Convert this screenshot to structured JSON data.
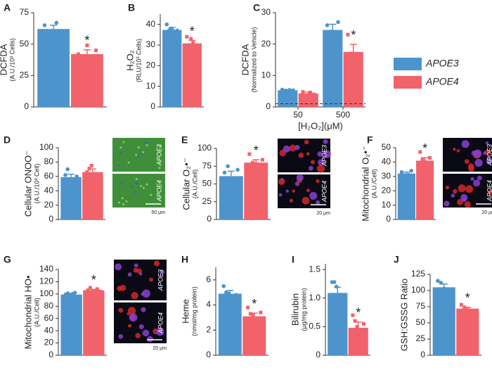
{
  "legend": {
    "series": [
      {
        "name": "APOE3",
        "color": "#4d94cc"
      },
      {
        "name": "APOE4",
        "color": "#f2626a"
      }
    ]
  },
  "chart_data": [
    {
      "type": "bar",
      "panel": "A",
      "ylabel": "DCFDA",
      "ylabel_sub": "(A.U./10³ Cells)",
      "ylim": [
        0,
        75
      ],
      "yticks": [
        0,
        25,
        50,
        75
      ],
      "series": [
        {
          "values": [
            62
          ],
          "errors": [
            3
          ],
          "points": [
            [
              65,
              60,
              67,
              56
            ]
          ]
        },
        {
          "values": [
            42
          ],
          "errors": [
            3.5
          ],
          "points": [
            [
              42,
              40,
              49,
              38,
              45
            ]
          ],
          "annotations": [
            "*"
          ]
        }
      ]
    },
    {
      "type": "bar",
      "panel": "B",
      "ylabel": "H₂O₂",
      "ylabel_sub": "(RLU/10³ Cells)",
      "ylim": [
        0,
        45
      ],
      "yticks": [
        0,
        10,
        20,
        30,
        40
      ],
      "series": [
        {
          "values": [
            37.3
          ],
          "errors": [
            1.2
          ],
          "points": [
            [
              40,
              37,
              38,
              37,
              34,
              37
            ]
          ]
        },
        {
          "values": [
            30.8
          ],
          "errors": [
            1.4
          ],
          "points": [
            [
              34,
              29,
              33,
              31,
              29,
              27
            ]
          ],
          "annotations": [
            "*"
          ]
        }
      ]
    },
    {
      "type": "bar",
      "panel": "C",
      "ylabel": "DCFDA",
      "ylabel_sub": "(Normalized to Vehicle)",
      "xlabel": "[H₂O₂](μM)",
      "categories": [
        "50",
        "500"
      ],
      "ylim": [
        0,
        30
      ],
      "yticks": [
        0,
        10,
        20,
        30
      ],
      "reference_line": 1,
      "series": [
        {
          "values": [
            5.3,
            24.5
          ],
          "errors": [
            0.2,
            1.8
          ],
          "points": [
            [
              5.5,
              5.2,
              5.4,
              5.3
            ],
            [
              26,
              24,
              21,
              27
            ]
          ]
        },
        {
          "values": [
            4.3,
            17.5
          ],
          "errors": [
            0.4,
            2.4
          ],
          "points": [
            [
              4.8,
              3.6,
              4.6,
              4.0
            ],
            [
              23,
              17,
              15,
              15
            ]
          ],
          "annotations": [
            null,
            "*"
          ]
        }
      ]
    },
    {
      "type": "bar",
      "panel": "D",
      "ylabel": "Cellular ONOO⁻",
      "ylabel_sub": "(A.U./10³ Cell)",
      "ylim": [
        0,
        100
      ],
      "yticks": [
        0,
        20,
        40,
        60,
        80,
        100
      ],
      "images": {
        "labels": [
          "APOE3",
          "APOE4"
        ],
        "scale_label": "50 μm",
        "style": "green"
      },
      "series": [
        {
          "values": [
            59
          ],
          "errors": [
            4
          ],
          "points": [
            [
              62,
              70,
              55,
              45,
              46,
              60
            ]
          ]
        },
        {
          "values": [
            66
          ],
          "errors": [
            4.5
          ],
          "points": [
            [
              66,
              71,
              75,
              58,
              60,
              60
            ]
          ]
        }
      ]
    },
    {
      "type": "bar",
      "panel": "E",
      "ylabel": "Cellular O₂•⁻",
      "ylabel_sub": "(A.U./Cell)",
      "ylim": [
        0,
        100
      ],
      "yticks": [
        0,
        25,
        50,
        75,
        100
      ],
      "images": {
        "labels": [
          "APOE3",
          "APOE4"
        ],
        "scale_label": "20 μm",
        "style": "dark"
      },
      "series": [
        {
          "values": [
            61
          ],
          "errors": [
            7
          ],
          "points": [
            [
              66,
              75,
              50,
              40,
              70
            ]
          ]
        },
        {
          "values": [
            80
          ],
          "errors": [
            4
          ],
          "points": [
            [
              92,
              80,
              78,
              72,
              84
            ]
          ],
          "annotations": [
            "*"
          ]
        }
      ]
    },
    {
      "type": "bar",
      "panel": "F",
      "ylabel": "Mitochondrial O₂•⁻",
      "ylabel_sub": "(A.U./Cell)",
      "ylim": [
        0,
        50
      ],
      "yticks": [
        0,
        10,
        20,
        30,
        40,
        50
      ],
      "images": {
        "labels": [
          "APOE3",
          "APOE4"
        ],
        "scale_label": "20 μm",
        "style": "dark"
      },
      "series": [
        {
          "values": [
            32
          ],
          "errors": [
            1
          ],
          "points": [
            [
              33,
              30,
              31,
              31,
              34
            ]
          ]
        },
        {
          "values": [
            41
          ],
          "errors": [
            2
          ],
          "points": [
            [
              47,
              42,
              40,
              35,
              43
            ]
          ],
          "annotations": [
            "*"
          ]
        }
      ]
    },
    {
      "type": "bar",
      "panel": "G",
      "ylabel": "Mitochondrial HO•",
      "ylabel_sub": "(A.U./Cell)",
      "ylim": [
        0,
        140
      ],
      "yticks": [
        0,
        20,
        40,
        60,
        80,
        100,
        120,
        140
      ],
      "images": {
        "labels": [
          "APOE3",
          "APOE4"
        ],
        "scale_label": "20 μm",
        "style": "dark"
      },
      "series": [
        {
          "values": [
            99
          ],
          "errors": [
            1.5
          ],
          "points": [
            [
              99,
              101,
              97,
              100,
              102,
              95
            ]
          ]
        },
        {
          "values": [
            106
          ],
          "errors": [
            1.5
          ],
          "points": [
            [
              106,
              110,
              105,
              104,
              108,
              104
            ]
          ],
          "annotations": [
            "*"
          ]
        }
      ]
    },
    {
      "type": "bar",
      "panel": "H",
      "ylabel": "Heme",
      "ylabel_sub": "(nmol/mg protein)",
      "ylim": [
        0,
        7
      ],
      "yticks": [
        0,
        2,
        4,
        6
      ],
      "series": [
        {
          "values": [
            4.9
          ],
          "errors": [
            0.25
          ],
          "points": [
            [
              5.5,
              5.0,
              4.9,
              4.2,
              4.6,
              4.8
            ]
          ]
        },
        {
          "values": [
            3.1
          ],
          "errors": [
            0.25
          ],
          "points": [
            [
              3.8,
              3.3,
              3.2,
              2.6,
              2.3,
              3.4
            ]
          ],
          "annotations": [
            "*"
          ]
        }
      ]
    },
    {
      "type": "bar",
      "panel": "I",
      "ylabel": "Bilirubin",
      "ylabel_sub": "(µg/mg protein)",
      "ylim": [
        0,
        1.6
      ],
      "yticks": [
        0,
        0.5,
        {
          "value": 1,
          "label": "1.0"
        },
        1.5
      ],
      "series": [
        {
          "values": [
            1.09
          ],
          "errors": [
            0.1
          ],
          "points": [
            [
              1.28,
              1.28,
              1.2,
              1.05,
              0.75,
              0.95
            ]
          ]
        },
        {
          "values": [
            0.48
          ],
          "errors": [
            0.1
          ],
          "points": [
            [
              0.7,
              0.6,
              0.5,
              0.35,
              0.15,
              0.55
            ]
          ],
          "annotations": [
            "*"
          ]
        }
      ]
    },
    {
      "type": "bar",
      "panel": "J",
      "ylabel": "GSH:GSSG Ratio",
      "ylim": [
        0,
        125
      ],
      "yticks": [
        0,
        25,
        50,
        75,
        100,
        125
      ],
      "series": [
        {
          "values": [
            105
          ],
          "errors": [
            5
          ],
          "points": [
            [
              115,
              112,
              103,
              100,
              95
            ]
          ]
        },
        {
          "values": [
            72
          ],
          "errors": [
            2
          ],
          "points": [
            [
              78,
              74,
              70,
              68,
              69
            ]
          ],
          "annotations": [
            "*"
          ]
        }
      ]
    }
  ]
}
